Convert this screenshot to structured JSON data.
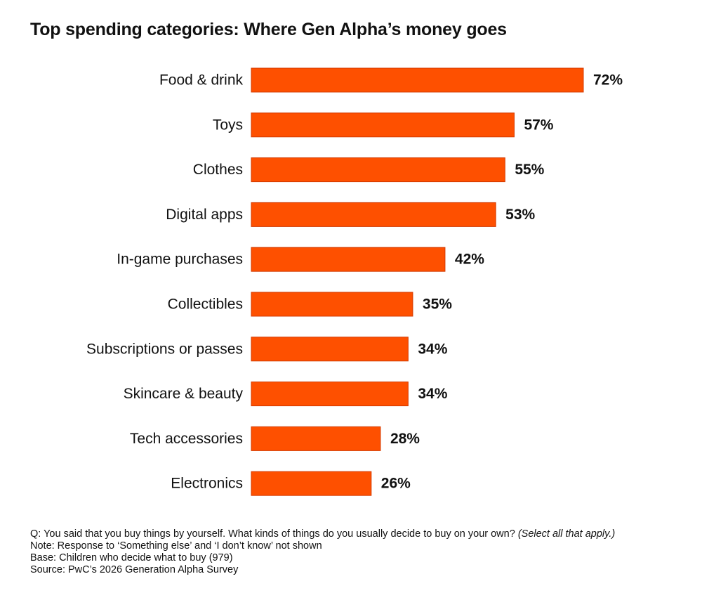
{
  "title": "Top spending categories: Where Gen Alpha’s money goes",
  "chart_data": {
    "type": "bar",
    "orientation": "horizontal",
    "title": "Top spending categories: Where Gen Alpha’s money goes",
    "categories": [
      "Food & drink",
      "Toys",
      "Clothes",
      "Digital apps",
      "In-game purchases",
      "Collectibles",
      "Subscriptions or passes",
      "Skincare & beauty",
      "Tech accessories",
      "Electronics"
    ],
    "values": [
      72,
      57,
      55,
      53,
      42,
      35,
      34,
      34,
      28,
      26
    ],
    "value_labels": [
      "72%",
      "57%",
      "55%",
      "53%",
      "42%",
      "35%",
      "34%",
      "34%",
      "28%",
      "26%"
    ],
    "xlabel": "",
    "ylabel": "",
    "xlim": [
      0,
      72
    ],
    "grid": false,
    "colors": {
      "bar": "#fe5000",
      "text": "#111111"
    }
  },
  "notes": {
    "question": "Q: You said that you buy things by yourself. What kinds of things do you usually decide to buy on your own?",
    "question_hint": "(Select all that apply.)",
    "note": "Note: Response to ‘Something else’ and ‘I don’t know’ not shown",
    "base": "Base: Children who decide what to buy (979)",
    "source": "Source: PwC’s 2026 Generation Alpha Survey"
  }
}
